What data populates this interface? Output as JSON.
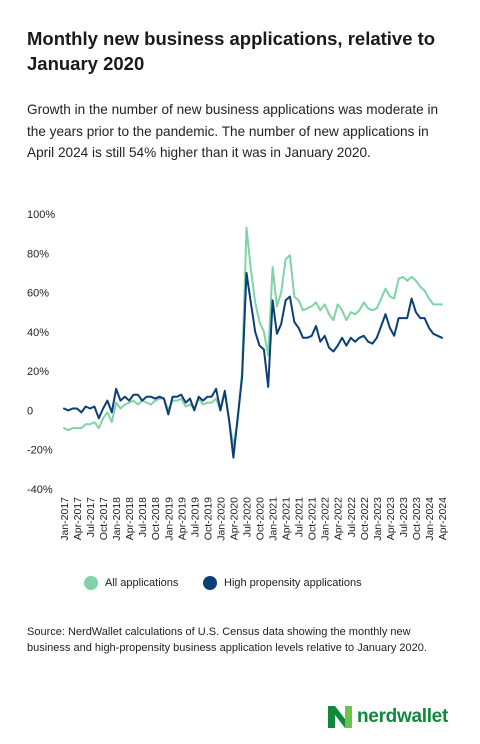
{
  "title": "Monthly new business applications, relative to January 2020",
  "subtitle": "Growth in the number of new business applications was moderate in the years prior to the pandemic. The number of new applications in April 2024 is still 54% higher than it was in January 2020.",
  "source": "Source: NerdWallet calculations of U.S. Census data showing the monthly new business and high-propensity business application levels relative to January 2020.",
  "logo": {
    "text": "nerdwallet",
    "color": "#0f8a3c"
  },
  "chart_data": {
    "type": "line",
    "title": "Monthly new business applications, relative to January 2020",
    "xlabel": "",
    "ylabel": "",
    "ylim": [
      -40,
      100
    ],
    "yticks": [
      -40,
      -20,
      0,
      20,
      40,
      60,
      80,
      100
    ],
    "ytick_labels": [
      "-40%",
      "-20%",
      "0",
      "20%",
      "40%",
      "60%",
      "80%",
      "100%"
    ],
    "grid": false,
    "legend_position": "bottom",
    "x_tick_labels": [
      "Jan-2017",
      "Apr-2017",
      "Jul-2017",
      "Oct-2017",
      "Jan-2018",
      "Apr-2018",
      "Jul-2018",
      "Oct-2018",
      "Jan-2019",
      "Apr-2019",
      "Jul-2019",
      "Oct-2019",
      "Jan-2020",
      "Apr-2020",
      "Jul-2020",
      "Oct-2020",
      "Jan-2021",
      "Apr-2021",
      "Jul-2021",
      "Oct-2021",
      "Jan-2022",
      "Apr-2022",
      "Jul-2022",
      "Oct-2022",
      "Jan-2023",
      "Apr-2023",
      "Jul-2023",
      "Oct-2023",
      "Jan-2024",
      "Apr-2024"
    ],
    "x_start": "Jan-2017",
    "x_end": "Apr-2024",
    "series": [
      {
        "name": "All applications",
        "color": "#7fd3a6",
        "values": [
          -9,
          -10,
          -9,
          -9,
          -9,
          -7,
          -7,
          -6,
          -9,
          -4,
          -1,
          -6,
          4,
          1,
          3,
          4,
          5,
          3,
          5,
          4,
          3,
          5,
          6,
          6,
          0,
          5,
          5,
          6,
          2,
          3,
          1,
          6,
          3,
          4,
          4,
          6,
          0,
          9,
          -5,
          -18,
          -5,
          20,
          93,
          72,
          55,
          45,
          40,
          28,
          73,
          53,
          60,
          77,
          79,
          58,
          56,
          51,
          52,
          53,
          55,
          51,
          54,
          49,
          46,
          54,
          51,
          46,
          50,
          49,
          51,
          55,
          52,
          51,
          52,
          57,
          62,
          58,
          57,
          67,
          68,
          66,
          68,
          66,
          63,
          61,
          57,
          54,
          54,
          54
        ]
      },
      {
        "name": "High propensity applications",
        "color": "#0b3f78",
        "values": [
          1,
          0,
          1,
          1,
          -1,
          2,
          1,
          2,
          -4,
          1,
          5,
          -1,
          11,
          5,
          7,
          5,
          8,
          8,
          5,
          7,
          7,
          6,
          7,
          6,
          -2,
          7,
          7,
          8,
          4,
          6,
          0,
          7,
          5,
          7,
          7,
          11,
          0,
          10,
          -5,
          -24,
          -3,
          17,
          70,
          55,
          40,
          33,
          31,
          12,
          56,
          39,
          44,
          56,
          58,
          45,
          42,
          37,
          37,
          38,
          43,
          35,
          38,
          32,
          30,
          33,
          37,
          33,
          37,
          35,
          37,
          38,
          35,
          34,
          37,
          43,
          49,
          42,
          38,
          47,
          47,
          47,
          57,
          50,
          47,
          47,
          42,
          39,
          38,
          37
        ]
      }
    ]
  }
}
